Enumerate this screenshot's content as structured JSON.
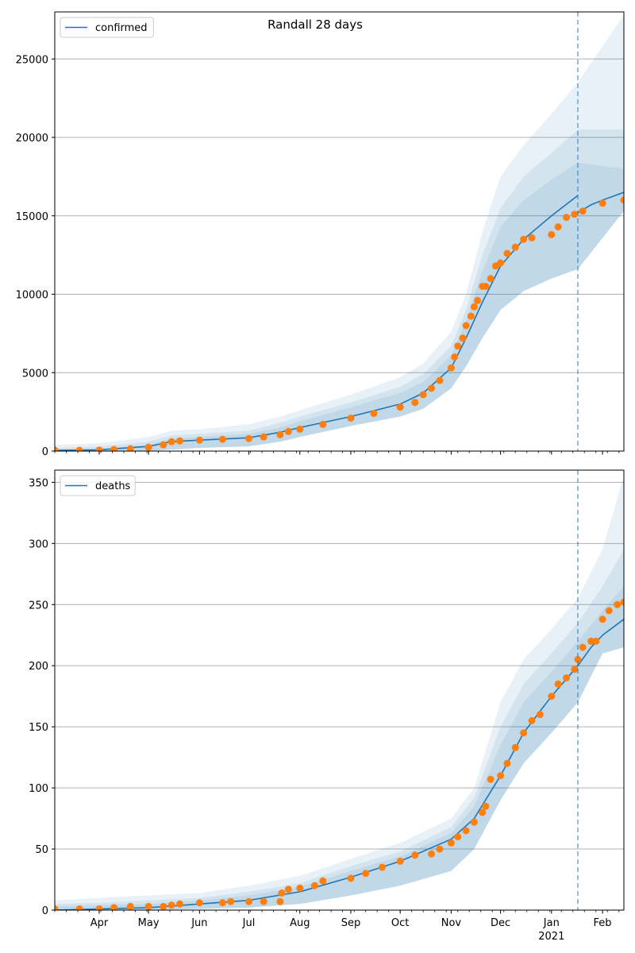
{
  "title": "Randall 28 days",
  "colors": {
    "model": "#1f77b4",
    "observed": "#ff7f0e",
    "band": "#1f77b4",
    "grid": "#b0b0b0",
    "forecast_line": "#1f77b4"
  },
  "x_axis": {
    "month_labels": [
      "Apr",
      "May",
      "Jun",
      "Jul",
      "Aug",
      "Sep",
      "Oct",
      "Nov",
      "Dec",
      "Jan",
      "Feb"
    ],
    "month_dates": [
      "2020-04-01",
      "2020-05-01",
      "2020-06-01",
      "2020-07-01",
      "2020-08-01",
      "2020-09-01",
      "2020-10-01",
      "2020-11-01",
      "2020-12-01",
      "2021-01-01",
      "2021-02-01"
    ],
    "year_label": "2021",
    "start": "2020-03-05",
    "end": "2021-02-14",
    "forecast_date": "2021-01-17"
  },
  "chart_data": [
    {
      "type": "line",
      "legend": "confirmed",
      "legend_position": "top-left",
      "grid": "horizontal",
      "ylim": [
        0,
        28000
      ],
      "yticks": [
        0,
        5000,
        10000,
        15000,
        20000,
        25000
      ],
      "model_series": {
        "dates": [
          "2020-03-05",
          "2020-04-01",
          "2020-05-01",
          "2020-05-15",
          "2020-06-01",
          "2020-07-01",
          "2020-07-20",
          "2020-08-01",
          "2020-09-01",
          "2020-10-01",
          "2020-10-15",
          "2020-11-01",
          "2020-11-10",
          "2020-11-20",
          "2020-12-01",
          "2020-12-15",
          "2021-01-01",
          "2021-01-17"
        ],
        "values": [
          50,
          80,
          300,
          600,
          700,
          850,
          1200,
          1500,
          2200,
          3000,
          3700,
          5300,
          7200,
          9500,
          11800,
          13500,
          15000,
          16300
        ]
      },
      "projection_series": {
        "dates": [
          "2021-01-17",
          "2021-01-25",
          "2021-02-01",
          "2021-02-14"
        ],
        "values": [
          15200,
          15700,
          16000,
          16500
        ]
      },
      "bands": [
        {
          "upper": [
            400,
            500,
            900,
            1300,
            1400,
            1700,
            2200,
            2600,
            3600,
            4700,
            5600,
            7600,
            10000,
            14000,
            17500,
            19500,
            21500,
            23500,
            27800
          ],
          "lower": [
            0,
            0,
            0,
            100,
            200,
            300,
            600,
            900,
            1600,
            2200,
            2700,
            4000,
            5400,
            7200,
            9000,
            10200,
            11000,
            11600,
            15300
          ]
        },
        {
          "upper": [
            200,
            300,
            600,
            1000,
            1100,
            1300,
            1800,
            2200,
            3100,
            4100,
            4900,
            6700,
            9000,
            12500,
            15500,
            17500,
            19000,
            20500,
            20500
          ]
        },
        {
          "upper": [
            100,
            150,
            400,
            800,
            900,
            1100,
            1500,
            1900,
            2800,
            3700,
            4400,
            6100,
            8300,
            11500,
            14300,
            16000,
            17300,
            18400,
            18000
          ]
        }
      ],
      "band_dates": [
        "2020-03-05",
        "2020-04-01",
        "2020-05-01",
        "2020-05-15",
        "2020-06-01",
        "2020-07-01",
        "2020-07-20",
        "2020-08-01",
        "2020-09-01",
        "2020-10-01",
        "2020-10-15",
        "2020-11-01",
        "2020-11-10",
        "2020-11-20",
        "2020-12-01",
        "2020-12-15",
        "2021-01-01",
        "2021-01-17",
        "2021-02-14"
      ],
      "observed": {
        "dates": [
          "2020-03-05",
          "2020-03-20",
          "2020-04-01",
          "2020-04-10",
          "2020-04-20",
          "2020-05-01",
          "2020-05-10",
          "2020-05-15",
          "2020-05-20",
          "2020-06-01",
          "2020-06-15",
          "2020-07-01",
          "2020-07-10",
          "2020-07-20",
          "2020-07-25",
          "2020-08-01",
          "2020-08-15",
          "2020-09-01",
          "2020-09-15",
          "2020-10-01",
          "2020-10-10",
          "2020-10-15",
          "2020-10-20",
          "2020-10-25",
          "2020-11-01",
          "2020-11-03",
          "2020-11-05",
          "2020-11-08",
          "2020-11-10",
          "2020-11-13",
          "2020-11-15",
          "2020-11-17",
          "2020-11-20",
          "2020-11-22",
          "2020-11-25",
          "2020-11-28",
          "2020-12-01",
          "2020-12-05",
          "2020-12-10",
          "2020-12-15",
          "2020-12-20",
          "2021-01-01",
          "2021-01-05",
          "2021-01-10",
          "2021-01-15",
          "2021-01-20",
          "2021-02-01",
          "2021-02-14"
        ],
        "values": [
          50,
          50,
          60,
          100,
          150,
          250,
          400,
          600,
          650,
          700,
          750,
          800,
          900,
          1050,
          1250,
          1400,
          1700,
          2100,
          2400,
          2800,
          3100,
          3600,
          4000,
          4500,
          5300,
          6000,
          6700,
          7200,
          8000,
          8600,
          9200,
          9600,
          10500,
          10500,
          11000,
          11800,
          12000,
          12600,
          13000,
          13500,
          13600,
          13800,
          14300,
          14900,
          15100,
          15300,
          15800,
          16000
        ]
      }
    },
    {
      "type": "line",
      "legend": "deaths",
      "legend_position": "top-left",
      "grid": "horizontal",
      "ylim": [
        0,
        360
      ],
      "yticks": [
        0,
        50,
        100,
        150,
        200,
        250,
        300,
        350
      ],
      "model_series": {
        "dates": [
          "2020-03-05",
          "2020-04-01",
          "2020-05-01",
          "2020-06-01",
          "2020-07-01",
          "2020-08-01",
          "2020-09-01",
          "2020-10-01",
          "2020-11-01",
          "2020-11-15",
          "2020-12-01",
          "2020-12-15",
          "2021-01-01",
          "2021-01-17",
          "2021-01-25",
          "2021-02-01",
          "2021-02-14"
        ],
        "values": [
          0,
          1,
          2,
          5,
          8,
          15,
          27,
          40,
          58,
          75,
          110,
          145,
          175,
          200,
          215,
          225,
          238
        ]
      },
      "bands": [
        {
          "upper": [
            8,
            10,
            12,
            14,
            20,
            28,
            42,
            55,
            75,
            100,
            170,
            205,
            230,
            255,
            295,
            355
          ],
          "lower": [
            0,
            0,
            0,
            1,
            2,
            5,
            12,
            20,
            32,
            50,
            90,
            120,
            145,
            170,
            210,
            215
          ]
        },
        {
          "upper": [
            5,
            6,
            8,
            10,
            15,
            22,
            36,
            48,
            68,
            92,
            150,
            185,
            210,
            235,
            265,
            295
          ]
        },
        {
          "upper": [
            3,
            4,
            5,
            8,
            12,
            19,
            32,
            44,
            63,
            85,
            135,
            170,
            195,
            220,
            245,
            265
          ]
        }
      ],
      "band_dates": [
        "2020-03-05",
        "2020-04-01",
        "2020-05-01",
        "2020-06-01",
        "2020-07-01",
        "2020-08-01",
        "2020-09-01",
        "2020-10-01",
        "2020-11-01",
        "2020-11-15",
        "2020-12-01",
        "2020-12-15",
        "2021-01-01",
        "2021-01-17",
        "2021-02-01",
        "2021-02-14"
      ],
      "observed": {
        "dates": [
          "2020-03-05",
          "2020-03-20",
          "2020-04-01",
          "2020-04-10",
          "2020-04-20",
          "2020-05-01",
          "2020-05-10",
          "2020-05-15",
          "2020-05-20",
          "2020-06-01",
          "2020-06-15",
          "2020-06-20",
          "2020-07-01",
          "2020-07-10",
          "2020-07-20",
          "2020-07-21",
          "2020-07-25",
          "2020-08-01",
          "2020-08-10",
          "2020-08-15",
          "2020-09-01",
          "2020-09-10",
          "2020-09-20",
          "2020-10-01",
          "2020-10-10",
          "2020-10-20",
          "2020-10-25",
          "2020-11-01",
          "2020-11-05",
          "2020-11-10",
          "2020-11-15",
          "2020-11-20",
          "2020-11-22",
          "2020-11-25",
          "2020-12-01",
          "2020-12-05",
          "2020-12-10",
          "2020-12-15",
          "2020-12-20",
          "2020-12-25",
          "2021-01-01",
          "2021-01-05",
          "2021-01-10",
          "2021-01-15",
          "2021-01-17",
          "2021-01-20",
          "2021-01-25",
          "2021-01-28",
          "2021-02-01",
          "2021-02-05",
          "2021-02-10",
          "2021-02-14"
        ],
        "values": [
          1,
          1,
          1,
          2,
          3,
          3,
          3,
          4,
          5,
          6,
          6,
          7,
          7,
          7,
          7,
          14,
          17,
          18,
          20,
          24,
          26,
          30,
          35,
          40,
          45,
          46,
          50,
          55,
          60,
          65,
          72,
          80,
          85,
          107,
          110,
          120,
          133,
          145,
          155,
          160,
          175,
          185,
          190,
          197,
          205,
          215,
          220,
          220,
          238,
          245,
          250,
          252
        ]
      }
    }
  ]
}
